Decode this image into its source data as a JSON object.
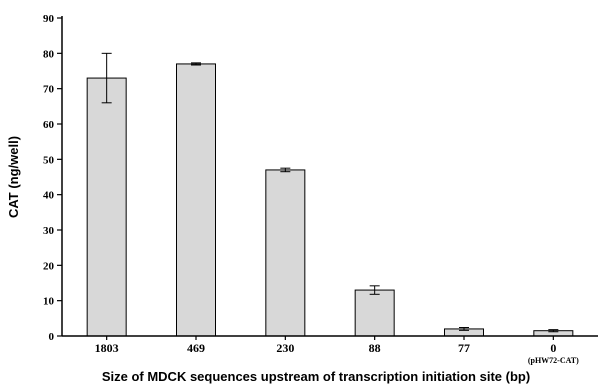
{
  "chart_data": {
    "type": "bar",
    "title": "",
    "xlabel": "Size of MDCK sequences upstream of transcription initiation site (bp)",
    "ylabel": "CAT (ng/well)",
    "ylim": [
      0,
      90
    ],
    "yticks": [
      0,
      10,
      20,
      30,
      40,
      50,
      60,
      70,
      80,
      90
    ],
    "grid": false,
    "categories": [
      "1803",
      "469",
      "230",
      "88",
      "77",
      "0"
    ],
    "category_sublabels": [
      "",
      "",
      "",
      "",
      "",
      "(pHW72-CAT)"
    ],
    "values": [
      73,
      77,
      47,
      13,
      2,
      1.5
    ],
    "errors": [
      7,
      0.3,
      0.5,
      1.2,
      0.4,
      0.3
    ],
    "bar_fill": "#d8d8d8",
    "bar_stroke": "#000000"
  }
}
